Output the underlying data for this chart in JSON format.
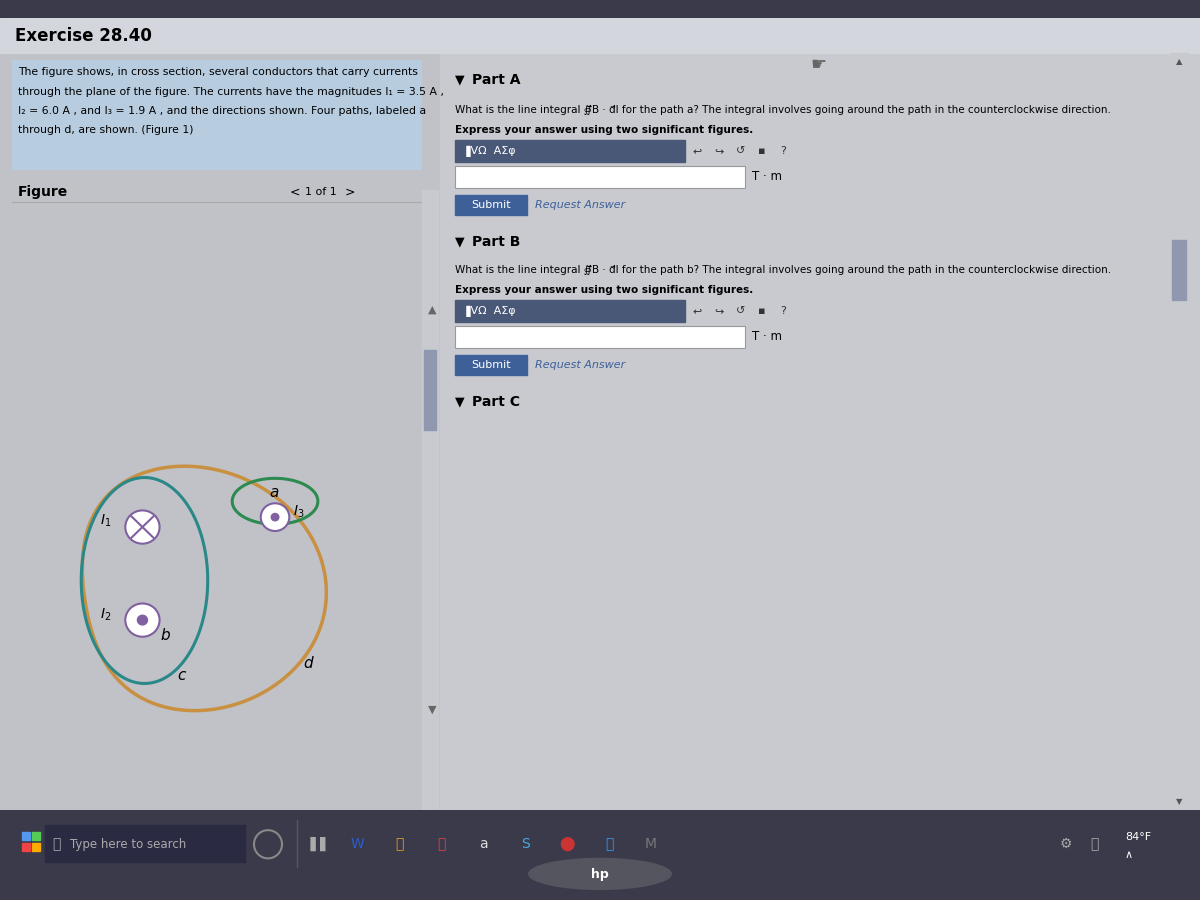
{
  "title": "Exercise 28.40",
  "outer_bg": "#3a3a4a",
  "screen_bg": "#c8cad0",
  "left_panel_bg": "#c0c2c8",
  "text_box_bg": "#b8cce0",
  "right_panel_bg": "#c8cad0",
  "problem_line1": "The figure shows, in cross section, several conductors that carry currents",
  "problem_line2": "through the plane of the figure. The currents have the magnitudes I₁ = 3.5 A ,",
  "problem_line3": "I₂ = 6.0 A , and I₃ = 1.9 A , and the directions shown. Four paths, labeled a",
  "problem_line4": "through d, are shown. (Figure 1)",
  "figure_label": "Figure",
  "figure_nav": "1 of 1",
  "part_a_label": "Part A",
  "part_b_label": "Part B",
  "part_c_label": "Part C",
  "part_a_q": "What is the line integral ∯⃗B · d⃗l for the path a? The integral involves going around the path in the counterclockwise direction.",
  "part_b_q": "What is the line integral ∯⃗B · d⃗l for the path b? The integral involves going around the path in the counterclockwise direction.",
  "express_text": "Express your answer using two significant figures.",
  "unit": "T · m",
  "submit_bg": "#3d6098",
  "toolbar_bg": "#4a5878",
  "input_bg": "#ffffff",
  "path_a_color": "#2d8a50",
  "path_b_color": "#2a8888",
  "path_d_color": "#c89040",
  "conductor_edge": "#8060a0",
  "conductor_fill": "#ffffff",
  "dot_color": "#8060a0",
  "taskbar_bg": "#1e1e30",
  "bezel_bg": "#101018",
  "laptop_base": "#252530",
  "title_bar_bg": "#d4d6de",
  "divider_color": "#aaaaaa",
  "scrollbar_bg": "#c8cad0",
  "scroll_thumb": "#9098b0"
}
